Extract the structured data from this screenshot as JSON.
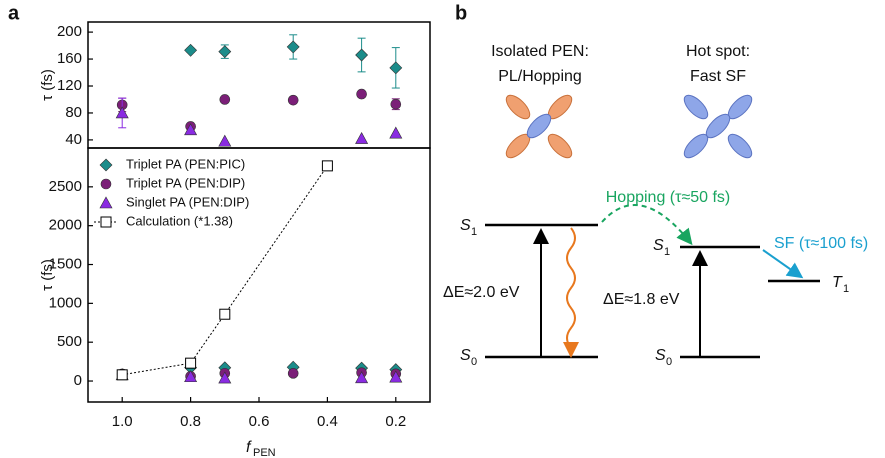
{
  "chart_data": [
    {
      "type": "scatter",
      "panel_label": "a",
      "ylabel": "τ (fs)",
      "x": [
        {
          "value": 1,
          "label": "1.0"
        },
        0.8,
        0.7,
        0.5,
        0.3,
        0.2
      ],
      "xlim": [
        1.1,
        0.1
      ],
      "ylim": [
        28,
        215
      ],
      "yticks": [
        40,
        80,
        120,
        160,
        200
      ],
      "series": [
        {
          "color": "#1b8c8a",
          "marker": "diamond",
          "values": [
            null,
            173,
            171,
            178,
            166,
            147
          ],
          "errors": [
            null,
            3,
            10,
            18,
            25,
            30
          ]
        },
        {
          "color": "#7b1f78",
          "marker": "circle",
          "values": [
            92,
            60,
            100,
            99,
            108,
            93
          ],
          "errors": [
            10,
            null,
            null,
            null,
            null,
            8
          ]
        },
        {
          "color": "#8a2be2",
          "marker": "triangle",
          "values": [
            80,
            55,
            38,
            null,
            42,
            50
          ],
          "errors": [
            22,
            null,
            null,
            null,
            null,
            null
          ]
        }
      ]
    },
    {
      "type": "scatter",
      "ylabel": "τ (fs)",
      "xlabel": "f",
      "xlabel_sub": "PEN",
      "x": [
        {
          "value": 1,
          "label": "1.0"
        },
        0.8,
        0.7,
        0.5,
        0.3,
        0.2
      ],
      "xlim": [
        1.1,
        0.1
      ],
      "ylim": [
        -270,
        3000
      ],
      "yticks": [
        0,
        500,
        1000,
        1500,
        2000,
        2500
      ],
      "xticks": [
        {
          "value": 1,
          "label": "1.0"
        },
        0.8,
        0.6,
        0.4,
        0.2
      ],
      "legend": "upper left",
      "series": [
        {
          "name": "Triplet PA (PEN:PIC)",
          "color": "#1b8c8a",
          "marker": "diamond",
          "values": [
            null,
            173,
            171,
            178,
            166,
            147
          ]
        },
        {
          "name": "Triplet PA (PEN:DIP)",
          "color": "#7b1f78",
          "marker": "circle",
          "values": [
            92,
            60,
            100,
            99,
            108,
            93
          ]
        },
        {
          "name": "Singlet PA (PEN:DIP)",
          "color": "#8a2be2",
          "marker": "triangle",
          "values": [
            80,
            55,
            38,
            null,
            42,
            50
          ]
        },
        {
          "name": "Calculation (*1.38)",
          "color": "#000000",
          "marker": "square",
          "line": "dotted",
          "x": [
            {
              "value": 1,
              "label": "1.0"
            },
            0.8,
            0.7,
            0.4
          ],
          "values": [
            80,
            230,
            860,
            2770
          ]
        }
      ]
    }
  ],
  "diagram": {
    "panel_label": "b",
    "left_title": [
      "Isolated PEN:",
      "PL/Hopping"
    ],
    "right_title": [
      "Hot spot:",
      "Fast SF"
    ],
    "hopping": "Hopping (τ≈50 fs)",
    "sf": "SF (τ≈100 fs)",
    "levels": [
      {
        "symbol": "S",
        "sub": "1"
      },
      {
        "symbol": "S",
        "sub": "0"
      },
      {
        "symbol": "S",
        "sub": "1"
      },
      {
        "symbol": "S",
        "sub": "0"
      },
      {
        "symbol": "T",
        "sub": "1"
      }
    ],
    "gaps": [
      "ΔE≈2.0 eV",
      "ΔE≈1.8 eV"
    ]
  }
}
